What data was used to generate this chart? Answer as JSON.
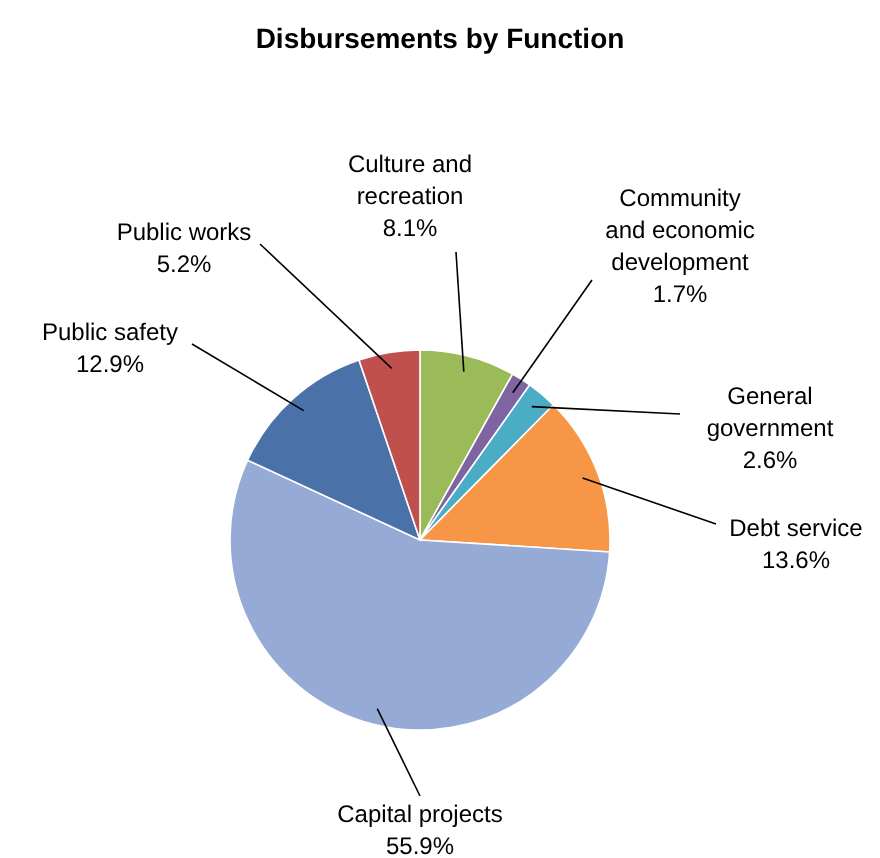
{
  "chart_data": {
    "type": "pie",
    "title": "Disbursements by Function",
    "categories": [
      "Culture and recreation",
      "Community and economic development",
      "General government",
      "Debt service",
      "Capital projects",
      "Public safety",
      "Public works"
    ],
    "values": [
      8.1,
      1.7,
      2.6,
      13.6,
      55.9,
      12.9,
      5.2
    ],
    "value_labels": [
      "8.1%",
      "1.7%",
      "2.6%",
      "13.6%",
      "55.9%",
      "12.9%",
      "5.2%"
    ],
    "colors": [
      "#9bbb59",
      "#8064a2",
      "#4bacc6",
      "#f79646",
      "#95abd6",
      "#4a72a8",
      "#c0504d"
    ]
  }
}
